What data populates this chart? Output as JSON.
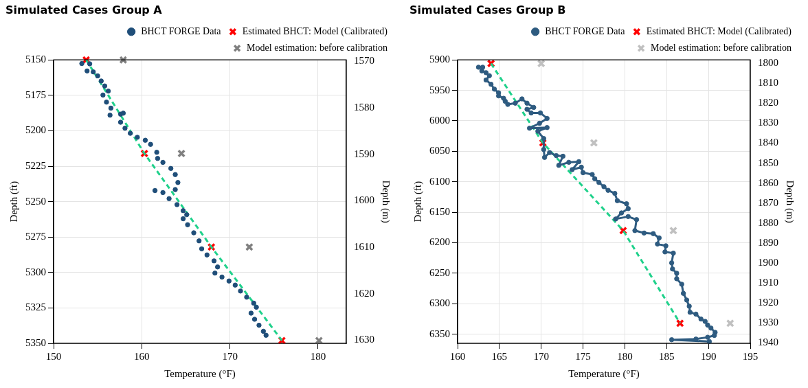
{
  "chart_data": [
    {
      "type": "scatter",
      "title": "Simulated Cases Group A",
      "xlabel": "Temperature (°F)",
      "ylabel": "Depth (ft)",
      "y2label": "Depth (m)",
      "xlim": [
        150,
        183.2
      ],
      "xticks": [
        150,
        160,
        170,
        180
      ],
      "ylim": [
        5350,
        5150
      ],
      "yticks": [
        5150,
        5175,
        5200,
        5225,
        5250,
        5275,
        5300,
        5325,
        5350
      ],
      "y2lim": [
        1630.7,
        1569.7
      ],
      "y2ticks": [
        1570,
        1580,
        1590,
        1600,
        1610,
        1620,
        1630
      ],
      "grid": true,
      "legend": "top right",
      "series": [
        {
          "name": "BHCT FORGE Data",
          "type": "scatter",
          "marker": "circle",
          "color": "#1f4e79",
          "x": [
            153.2,
            154.1,
            153.8,
            154.5,
            155.0,
            155.4,
            155.8,
            156.2,
            155.6,
            156.0,
            156.5,
            156.4,
            157.6,
            157.9,
            157.6,
            158.1,
            158.7,
            159.5,
            160.4,
            161.0,
            161.7,
            161.8,
            162.4,
            163.3,
            163.8,
            164.1,
            163.8,
            161.5,
            162.4,
            163.1,
            164.0,
            164.7,
            165.1,
            164.7,
            165.2,
            165.9,
            166.5,
            166.8,
            167.4,
            168.2,
            168.6,
            168.3,
            169.1,
            169.9,
            170.6,
            171.2,
            171.9,
            172.7,
            173.0,
            172.4,
            172.8,
            173.3,
            173.8,
            174.1
          ],
          "values": [
            5152.6,
            5152.8,
            5157.8,
            5158.5,
            5161.3,
            5164.9,
            5168.4,
            5172,
            5174.8,
            5179.8,
            5184,
            5189,
            5188.3,
            5187.6,
            5194,
            5198.2,
            5201.8,
            5204.6,
            5206.7,
            5209.6,
            5215.2,
            5219.5,
            5222.3,
            5226.6,
            5230.9,
            5236.5,
            5241.5,
            5242.2,
            5243.6,
            5247.9,
            5252.1,
            5256.4,
            5259.2,
            5262.1,
            5266.3,
            5272,
            5277.7,
            5283.3,
            5287.6,
            5291.8,
            5296.1,
            5300.4,
            5303.2,
            5306,
            5308.9,
            5313.1,
            5317.4,
            5321.6,
            5324.5,
            5328.7,
            5333,
            5337.2,
            5341.5,
            5344.3
          ]
        },
        {
          "type": "line",
          "marker": "none",
          "line_style": "dashed",
          "color": "#1fd18b",
          "x": [
            153.7,
            160.3,
            167.9,
            175.9
          ],
          "values": [
            5150,
            5216,
            5282,
            5348
          ]
        },
        {
          "name": "Estimated BHCT: Model (Calibrated)",
          "type": "scatter",
          "marker": "cross",
          "color": "#ff0000",
          "x": [
            153.7,
            160.3,
            167.9,
            175.9
          ],
          "values": [
            5150,
            5216,
            5282,
            5348
          ]
        },
        {
          "name": "Model estimation: before calibration",
          "type": "scatter",
          "marker": "cross",
          "color": "#808080",
          "x": [
            157.9,
            164.5,
            172.2,
            180.1
          ],
          "values": [
            5150,
            5216,
            5282,
            5348
          ]
        }
      ]
    },
    {
      "type": "scatter",
      "title": "Simulated Cases Group B",
      "xlabel": "Temperature (°F)",
      "ylabel": "Depth (ft)",
      "y2label": "Depth (m)",
      "xlim": [
        160,
        195
      ],
      "xticks": [
        160,
        165,
        170,
        175,
        180,
        185,
        190,
        195
      ],
      "ylim": [
        6365,
        5900
      ],
      "yticks": [
        5900,
        5950,
        6000,
        6050,
        6100,
        6150,
        6200,
        6250,
        6300,
        6350
      ],
      "y2lim": [
        1940.2,
        1798.3
      ],
      "y2ticks": [
        1800,
        1810,
        1820,
        1830,
        1840,
        1850,
        1860,
        1870,
        1880,
        1890,
        1900,
        1910,
        1920,
        1930,
        1940
      ],
      "grid": true,
      "legend": "top right",
      "series": [
        {
          "name": "BHCT FORGE Data",
          "type": "line",
          "marker": "circle",
          "color": "#2e5b80",
          "x": [
            162.5,
            163.0,
            162.9,
            163.4,
            163.8,
            163.4,
            164.0,
            164.4,
            164.9,
            164.9,
            165.5,
            165.7,
            166.0,
            166.9,
            167.7,
            168.3,
            169.1,
            168.3,
            168.8,
            169.9,
            170.7,
            169.8,
            168.6,
            170.7,
            169.6,
            170.3,
            170.3,
            170.4,
            171.0,
            171.8,
            172.6,
            172.1,
            173.3,
            174.5,
            173.7,
            174.8,
            175.0,
            176.1,
            176.4,
            176.9,
            177.5,
            178.0,
            178.8,
            179.1,
            180.2,
            180.4,
            179.6,
            178.9,
            180.4,
            181.4,
            181.2,
            182.3,
            183.4,
            184.1,
            183.9,
            184.9,
            184.8,
            185.8,
            185.6,
            185.7,
            186.2,
            186.2,
            186.8,
            187.0,
            187.4,
            187.7,
            187.8,
            188.5,
            189.1,
            189.6,
            189.9,
            190.3,
            190.8,
            190.7,
            189.9,
            188.5,
            185.6,
            190.1
          ],
          "values": [
            5912,
            5912,
            5918,
            5921,
            5926,
            5933,
            5940,
            5948,
            5954,
            5959,
            5963,
            5968,
            5973,
            5971,
            5964,
            5971,
            5978,
            5981,
            5987,
            5987,
            5996,
            6004,
            6012,
            6011,
            6017,
            6029,
            6047,
            6060,
            6052,
            6057,
            6058,
            6073,
            6068,
            6067,
            6080,
            6076,
            6085,
            6088,
            6095,
            6101,
            6108,
            6114,
            6119,
            6131,
            6136,
            6144,
            6151,
            6161,
            6157,
            6162,
            6180,
            6184,
            6185,
            6192,
            6202,
            6205,
            6215,
            6217,
            6233,
            6243,
            6250,
            6259,
            6268,
            6283,
            6294,
            6304,
            6314,
            6317,
            6325,
            6329,
            6335,
            6340,
            6347,
            6352,
            6355,
            6358,
            6359,
            6362
          ]
        },
        {
          "type": "line",
          "marker": "none",
          "line_style": "dashed",
          "color": "#1fd18b",
          "x": [
            164.0,
            170.2,
            179.8,
            186.6
          ],
          "values": [
            5906,
            6036,
            6180,
            6332
          ]
        },
        {
          "name": "Estimated BHCT: Model (Calibrated)",
          "type": "scatter",
          "marker": "cross",
          "color": "#ff0000",
          "x": [
            164.0,
            170.2,
            179.8,
            186.6
          ],
          "values": [
            5906,
            6036,
            6180,
            6332
          ]
        },
        {
          "name": "Model estimation: before calibration",
          "type": "scatter",
          "marker": "cross",
          "color": "#c0c0c0",
          "x": [
            170.0,
            176.3,
            185.8,
            192.6
          ],
          "values": [
            5906,
            6036,
            6180,
            6332
          ]
        }
      ]
    }
  ]
}
